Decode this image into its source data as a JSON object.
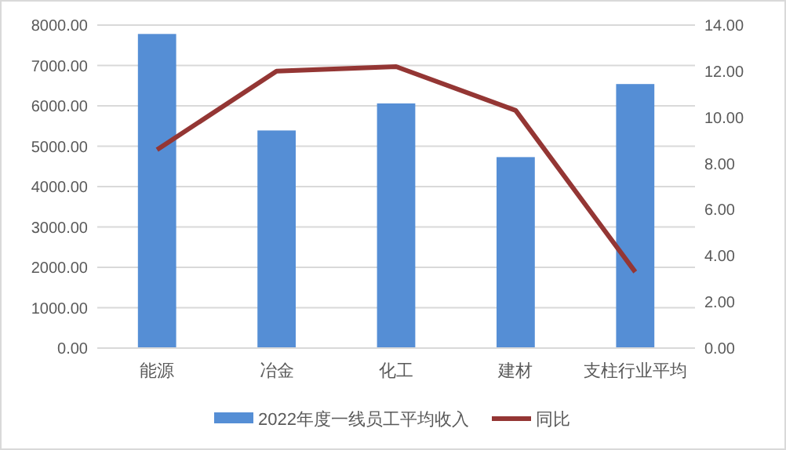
{
  "chart_data": {
    "type": "bar",
    "categories": [
      "能源",
      "冶金",
      "化工",
      "建材",
      "支柱行业平均"
    ],
    "series": [
      {
        "name": "2022年度一线员工平均收入",
        "color": "#558ed5",
        "values": [
          7780,
          5390,
          6060,
          4730,
          6540
        ]
      },
      {
        "name": "同比",
        "color": "#943634",
        "type": "line",
        "axis": "y2",
        "values": [
          8.6,
          12.0,
          12.2,
          10.3,
          3.3
        ]
      }
    ],
    "ylim": [
      0,
      8000
    ],
    "yticks": [
      {
        "value": 0,
        "label": "0.00"
      },
      {
        "value": 1000,
        "label": "1000.00"
      },
      {
        "value": 2000,
        "label": "2000.00"
      },
      {
        "value": 3000,
        "label": "3000.00"
      },
      {
        "value": 4000,
        "label": "4000.00"
      },
      {
        "value": 5000,
        "label": "5000.00"
      },
      {
        "value": 6000,
        "label": "6000.00"
      },
      {
        "value": 7000,
        "label": "7000.00"
      },
      {
        "value": 8000,
        "label": "8000.00"
      }
    ],
    "y2lim": [
      0,
      14
    ],
    "y2ticks": [
      {
        "value": 0,
        "label": "0.00"
      },
      {
        "value": 2,
        "label": "2.00"
      },
      {
        "value": 4,
        "label": "4.00"
      },
      {
        "value": 6,
        "label": "6.00"
      },
      {
        "value": 8,
        "label": "8.00"
      },
      {
        "value": 10,
        "label": "10.00"
      },
      {
        "value": 12,
        "label": "12.00"
      },
      {
        "value": 14,
        "label": "14.00"
      }
    ],
    "grid": "y",
    "legend": "bottom",
    "marker": "none"
  }
}
